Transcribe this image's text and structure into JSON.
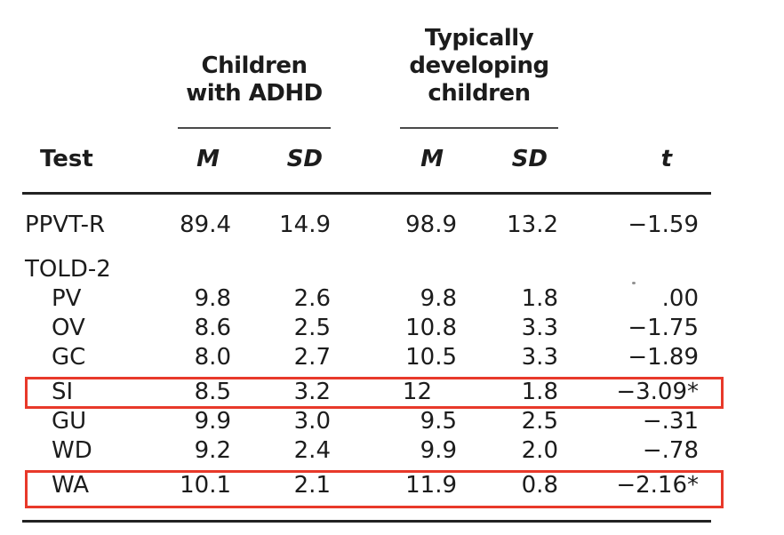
{
  "table": {
    "group_headers": {
      "adhd": "Children\nwith ADHD",
      "typical": "Typically\ndeveloping\nchildren"
    },
    "column_headers": {
      "test": "Test",
      "m": "M",
      "sd": "SD",
      "t": "t"
    },
    "rows": [
      {
        "label": "PPVT-R",
        "indent": false,
        "section": false,
        "highlight": false,
        "values": [
          "89.4",
          "14.9",
          "98.9",
          "13.2",
          "−1.59"
        ]
      },
      {
        "label": "TOLD-2",
        "indent": false,
        "section": true,
        "highlight": false,
        "values": [
          "",
          "",
          "",
          "",
          ""
        ]
      },
      {
        "label": "PV",
        "indent": true,
        "section": false,
        "highlight": false,
        "values": [
          "9.8",
          "2.6",
          "9.8",
          "1.8",
          ".00"
        ]
      },
      {
        "label": "OV",
        "indent": true,
        "section": false,
        "highlight": false,
        "values": [
          "8.6",
          "2.5",
          "10.8",
          "3.3",
          "−1.75"
        ]
      },
      {
        "label": "GC",
        "indent": true,
        "section": false,
        "highlight": false,
        "values": [
          "8.0",
          "2.7",
          "10.5",
          "3.3",
          "−1.89"
        ]
      },
      {
        "label": "SI",
        "indent": true,
        "section": false,
        "highlight": true,
        "values": [
          "8.5",
          "3.2",
          "12",
          "1.8",
          "−3.09*"
        ]
      },
      {
        "label": "GU",
        "indent": true,
        "section": false,
        "highlight": false,
        "values": [
          "9.9",
          "3.0",
          "9.5",
          "2.5",
          "−.31"
        ]
      },
      {
        "label": "WD",
        "indent": true,
        "section": false,
        "highlight": false,
        "values": [
          "9.2",
          "2.4",
          "9.9",
          "2.0",
          "−.78"
        ]
      },
      {
        "label": "WA",
        "indent": true,
        "section": false,
        "highlight": true,
        "values": [
          "10.1",
          "2.1",
          "11.9",
          "0.8",
          "−2.16*"
        ]
      }
    ],
    "highlight_color": "#e8392a",
    "text_color": "#1c1c1c"
  }
}
